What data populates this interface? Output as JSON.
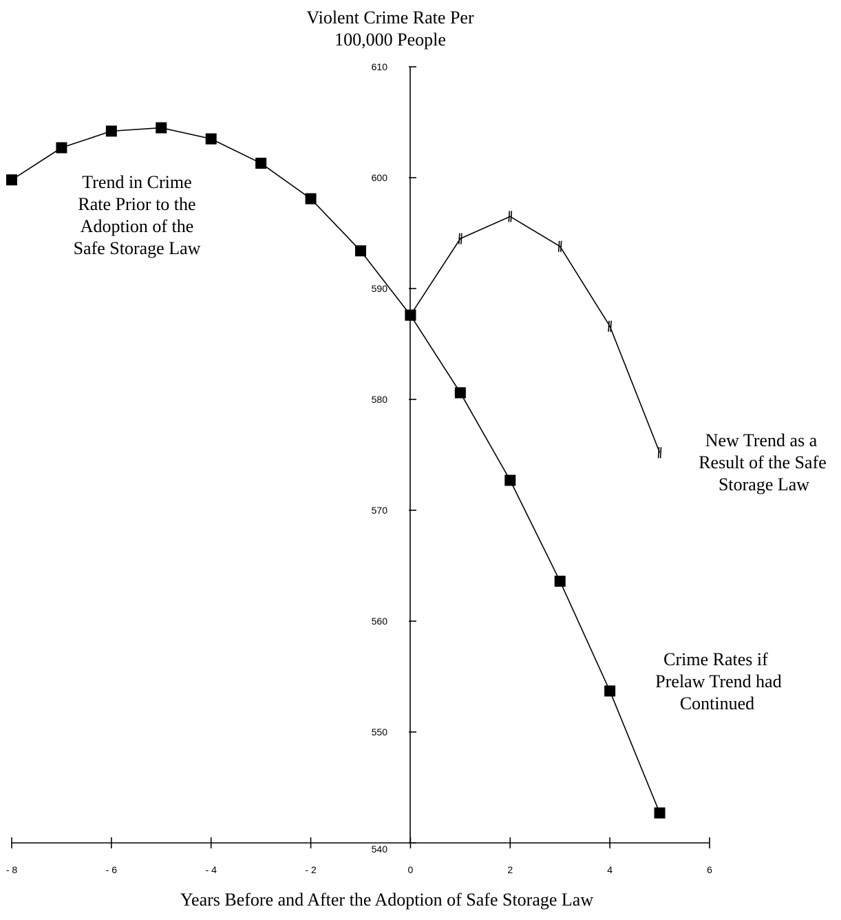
{
  "chart_data": {
    "type": "line",
    "title": "Violent Crime Rate Per 100,000 People",
    "title_lines": [
      "Violent Crime Rate Per",
      "100,000 People"
    ],
    "xlabel": "Years Before and After the Adoption of Safe Storage Law",
    "ylabel": "Violent Crime Rate Per 100,000 People",
    "xlim": [
      -8,
      6
    ],
    "ylim": [
      540,
      610
    ],
    "x_ticks": [
      -8,
      -6,
      -4,
      -2,
      0,
      2,
      4,
      6
    ],
    "x_tick_labels": [
      "- 8",
      "- 6",
      "- 4",
      "- 2",
      "0",
      "2",
      "4",
      "6"
    ],
    "y_ticks": [
      540,
      550,
      560,
      570,
      580,
      590,
      600,
      610
    ],
    "y_tick_labels": [
      "540",
      "550",
      "560",
      "570",
      "580",
      "590",
      "600",
      "610"
    ],
    "grid": false,
    "series": [
      {
        "marker": "square",
        "x": [
          -8,
          -7,
          -6,
          -5,
          -4,
          -3,
          -2,
          -1,
          0
        ],
        "y": [
          599.8,
          602.7,
          604.2,
          604.5,
          603.5,
          601.3,
          598.1,
          593.4,
          587.6
        ]
      },
      {
        "marker": "tick",
        "x": [
          0,
          1,
          2,
          3,
          4,
          5
        ],
        "y": [
          587.6,
          594.5,
          596.5,
          593.8,
          586.6,
          575.2
        ]
      },
      {
        "marker": "square",
        "x": [
          0,
          1,
          2,
          3,
          4,
          5
        ],
        "y": [
          587.6,
          580.6,
          572.7,
          563.6,
          553.7,
          542.7
        ]
      }
    ],
    "annotations": [
      {
        "lines": [
          "Trend in Crime",
          "Rate Prior to the",
          "Adoption of the",
          "Safe Storage Law"
        ]
      },
      {
        "lines": [
          "New Trend as a",
          "Result of the Safe",
          "Storage Law"
        ]
      },
      {
        "lines": [
          "Crime Rates  if",
          "Prelaw Trend had",
          "Continued"
        ]
      }
    ]
  }
}
